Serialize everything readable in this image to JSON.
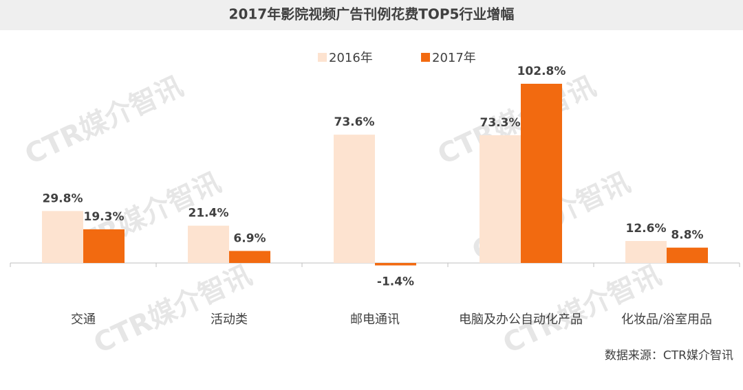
{
  "chart_data": {
    "type": "bar",
    "title": "2017年影院视频广告刊例花费TOP5行业增幅",
    "categories": [
      "交通",
      "活动类",
      "邮电通讯",
      "电脑及办公自动化产品",
      "化妆品/浴室用品"
    ],
    "series": [
      {
        "name": "2016年",
        "color": "#fde3d0",
        "values": [
          29.8,
          21.4,
          73.6,
          73.3,
          12.6
        ],
        "value_labels": [
          "29.8%",
          "21.4%",
          "73.6%",
          "73.3%",
          "12.6%"
        ]
      },
      {
        "name": "2017年",
        "color": "#f26a10",
        "values": [
          19.3,
          6.9,
          -1.4,
          102.8,
          8.8
        ],
        "value_labels": [
          "19.3%",
          "6.9%",
          "-1.4%",
          "102.8%",
          "8.8%"
        ]
      }
    ],
    "source": "数据来源：CTR媒介智讯",
    "watermark": "CTR媒介智讯"
  }
}
